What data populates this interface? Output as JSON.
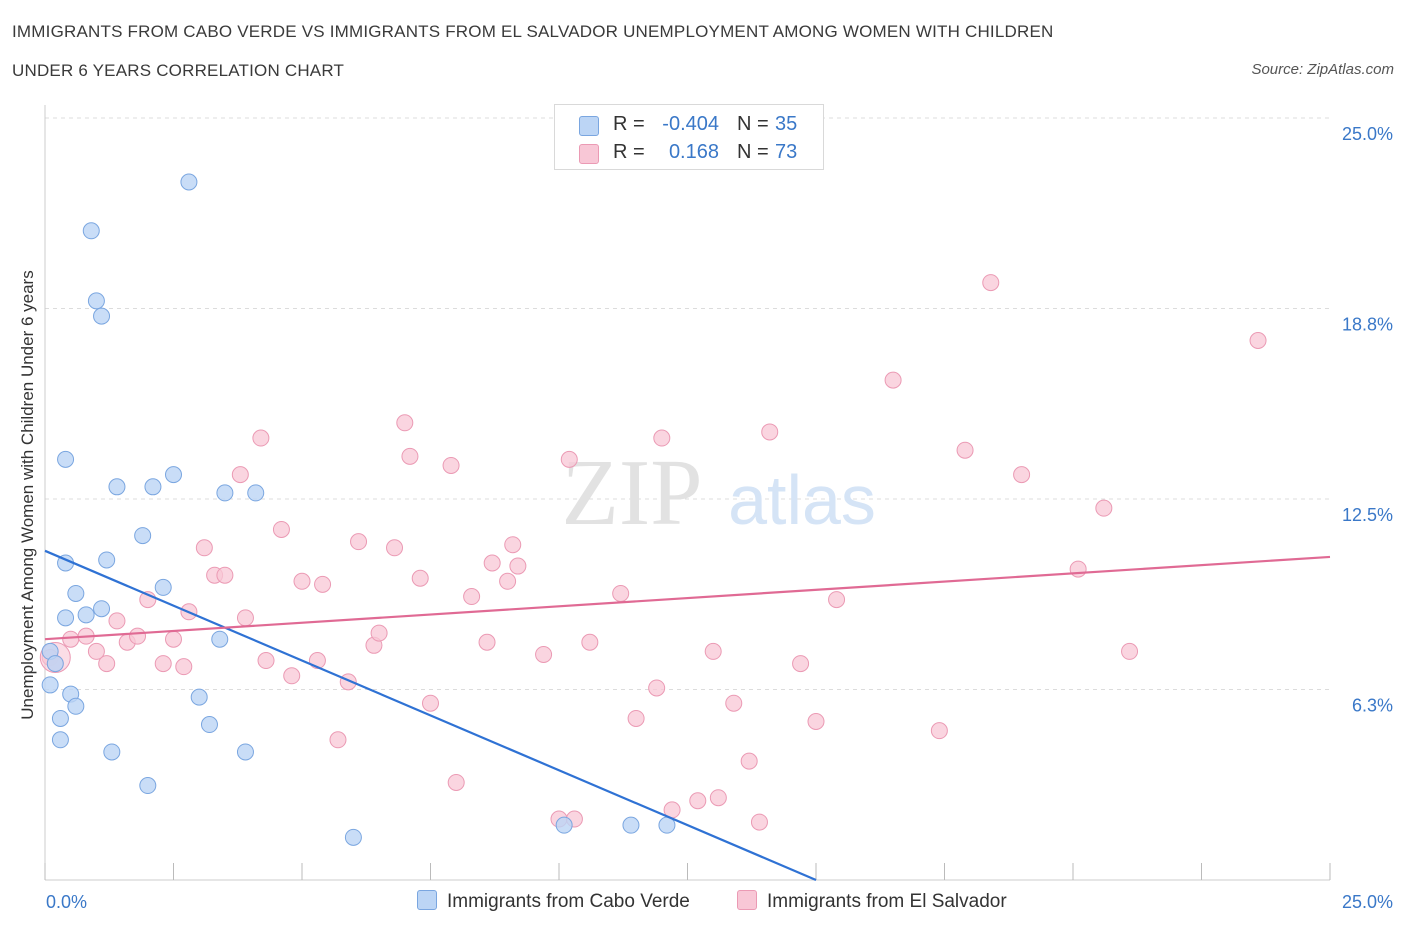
{
  "header": {
    "title_line1": "IMMIGRANTS FROM CABO VERDE VS IMMIGRANTS FROM EL SALVADOR UNEMPLOYMENT AMONG WOMEN WITH CHILDREN",
    "title_line2": "UNDER 6 YEARS CORRELATION CHART",
    "source": "Source: ZipAtlas.com"
  },
  "legend": {
    "series1": {
      "r_label": "R =",
      "r_value": "-0.404",
      "n_label": "N =",
      "n_value": "35"
    },
    "series2": {
      "r_label": "R =",
      "r_value": "0.168",
      "n_label": "N =",
      "n_value": "73"
    }
  },
  "bottom_legend": {
    "series1": "Immigrants from Cabo Verde",
    "series2": "Immigrants from El Salvador"
  },
  "watermark": {
    "zip": "ZIP",
    "atlas": "atlas"
  },
  "colors": {
    "series1_fill": "#bcd5f5",
    "series1_stroke": "#7aa6e0",
    "series1_line": "#2f72d4",
    "series2_fill": "#f8c7d6",
    "series2_stroke": "#eb9ab4",
    "series2_line": "#e06a94",
    "tick_label": "#3a78c8"
  },
  "chart_data": {
    "type": "scatter",
    "ylabel": "Unemployment Among Women with Children Under 6 years",
    "xlim": [
      0,
      25
    ],
    "ylim": [
      0,
      25
    ],
    "x_tick_labels": [
      "0.0%",
      "25.0%"
    ],
    "y_ticks": [
      {
        "value": 6.25,
        "label": "6.3%"
      },
      {
        "value": 12.5,
        "label": "12.5%"
      },
      {
        "value": 18.75,
        "label": "18.8%"
      },
      {
        "value": 25,
        "label": "25.0%"
      }
    ],
    "grid": "horizontal dashed",
    "legend_position": "top-center",
    "series": [
      {
        "name": "Immigrants from Cabo Verde",
        "trend": [
          [
            0,
            10.8
          ],
          [
            15,
            0
          ]
        ],
        "points": [
          [
            0.1,
            7.5
          ],
          [
            0.1,
            6.4
          ],
          [
            0.2,
            7.1
          ],
          [
            0.3,
            4.6
          ],
          [
            0.3,
            5.3
          ],
          [
            0.4,
            8.6
          ],
          [
            0.4,
            10.4
          ],
          [
            0.4,
            13.8
          ],
          [
            0.5,
            6.1
          ],
          [
            0.6,
            5.7
          ],
          [
            0.6,
            9.4
          ],
          [
            0.8,
            8.7
          ],
          [
            0.9,
            21.3
          ],
          [
            1.0,
            19.0
          ],
          [
            1.1,
            8.9
          ],
          [
            1.1,
            18.5
          ],
          [
            1.2,
            10.5
          ],
          [
            1.3,
            4.2
          ],
          [
            1.4,
            12.9
          ],
          [
            1.9,
            11.3
          ],
          [
            2.0,
            3.1
          ],
          [
            2.1,
            12.9
          ],
          [
            2.3,
            9.6
          ],
          [
            2.5,
            13.3
          ],
          [
            2.8,
            22.9
          ],
          [
            3.0,
            6.0
          ],
          [
            3.2,
            5.1
          ],
          [
            3.4,
            7.9
          ],
          [
            3.5,
            12.7
          ],
          [
            3.9,
            4.2
          ],
          [
            4.1,
            12.7
          ],
          [
            6.0,
            1.4
          ],
          [
            10.1,
            1.8
          ],
          [
            11.4,
            1.8
          ],
          [
            12.1,
            1.8
          ]
        ]
      },
      {
        "name": "Immigrants from El Salvador",
        "trend": [
          [
            0,
            7.9
          ],
          [
            25,
            10.6
          ]
        ],
        "points": [
          [
            0.1,
            7.3
          ],
          [
            0.2,
            7.1
          ],
          [
            0.5,
            7.9
          ],
          [
            0.8,
            8.0
          ],
          [
            1.0,
            7.5
          ],
          [
            1.2,
            7.1
          ],
          [
            1.4,
            8.5
          ],
          [
            1.6,
            7.8
          ],
          [
            1.8,
            8.0
          ],
          [
            2.0,
            9.2
          ],
          [
            2.3,
            7.1
          ],
          [
            2.5,
            7.9
          ],
          [
            2.7,
            7.0
          ],
          [
            2.8,
            8.8
          ],
          [
            3.1,
            10.9
          ],
          [
            3.3,
            10.0
          ],
          [
            3.5,
            10.0
          ],
          [
            3.8,
            13.3
          ],
          [
            3.9,
            8.6
          ],
          [
            4.2,
            14.5
          ],
          [
            4.3,
            7.2
          ],
          [
            4.6,
            11.5
          ],
          [
            4.8,
            6.7
          ],
          [
            5.0,
            9.8
          ],
          [
            5.3,
            7.2
          ],
          [
            5.4,
            9.7
          ],
          [
            5.7,
            4.6
          ],
          [
            5.9,
            6.5
          ],
          [
            6.1,
            11.1
          ],
          [
            6.4,
            7.7
          ],
          [
            6.5,
            8.1
          ],
          [
            6.8,
            10.9
          ],
          [
            7.0,
            15.0
          ],
          [
            7.1,
            13.9
          ],
          [
            7.3,
            9.9
          ],
          [
            7.5,
            5.8
          ],
          [
            7.9,
            13.6
          ],
          [
            8.0,
            3.2
          ],
          [
            8.3,
            9.3
          ],
          [
            8.6,
            7.8
          ],
          [
            8.7,
            10.4
          ],
          [
            9.0,
            9.8
          ],
          [
            9.1,
            11.0
          ],
          [
            9.2,
            10.3
          ],
          [
            9.7,
            7.4
          ],
          [
            10.0,
            2.0
          ],
          [
            10.2,
            13.8
          ],
          [
            10.3,
            2.0
          ],
          [
            10.6,
            7.8
          ],
          [
            11.2,
            9.4
          ],
          [
            11.5,
            5.3
          ],
          [
            11.9,
            6.3
          ],
          [
            12.0,
            14.5
          ],
          [
            12.2,
            2.3
          ],
          [
            12.7,
            2.6
          ],
          [
            13.0,
            7.5
          ],
          [
            13.1,
            2.7
          ],
          [
            13.4,
            5.8
          ],
          [
            13.7,
            3.9
          ],
          [
            13.9,
            1.9
          ],
          [
            14.1,
            14.7
          ],
          [
            14.7,
            7.1
          ],
          [
            15.0,
            5.2
          ],
          [
            15.4,
            9.2
          ],
          [
            16.5,
            16.4
          ],
          [
            17.4,
            4.9
          ],
          [
            17.9,
            14.1
          ],
          [
            18.4,
            19.6
          ],
          [
            19.0,
            13.3
          ],
          [
            20.1,
            10.2
          ],
          [
            20.6,
            12.2
          ],
          [
            21.1,
            7.5
          ],
          [
            23.6,
            17.7
          ]
        ]
      }
    ]
  }
}
